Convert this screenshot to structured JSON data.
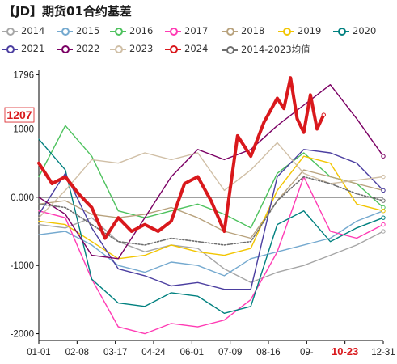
{
  "title": "【JD】期货01合约基差",
  "chart_data": {
    "type": "line",
    "title": "【JD】期货01合约基差",
    "xlabel": "",
    "ylabel": "",
    "ylim": [
      -2100,
      1800
    ],
    "y_ticks": [
      1796,
      1000,
      0.0,
      -1000,
      -2000
    ],
    "y_tick_labels": [
      "1796",
      "1000",
      "0.000",
      "-1000",
      "-2000"
    ],
    "x_ticks": [
      "01-01",
      "02-08",
      "03-17",
      "04-24",
      "06-01",
      "07-09",
      "08-16",
      "09-",
      "10-23",
      "12-31"
    ],
    "highlight_x": "10-23",
    "highlight_y": 1207,
    "highlight_y_label": "1207",
    "grid": false,
    "legend_position": "top",
    "series": [
      {
        "name": "2014",
        "color": "#a6a6a6",
        "width": 1.4,
        "dash": "",
        "x": [
          0,
          4,
          8,
          12,
          16,
          20,
          24,
          28,
          32,
          36,
          40,
          44,
          48,
          52
        ],
        "values": [
          -400,
          -450,
          -300,
          -650,
          -800,
          -700,
          -750,
          -1050,
          -1250,
          -1100,
          -1000,
          -850,
          -700,
          -500
        ]
      },
      {
        "name": "2015",
        "color": "#74a9cf",
        "width": 1.4,
        "dash": "",
        "x": [
          0,
          4,
          8,
          12,
          16,
          20,
          24,
          28,
          32,
          36,
          40,
          44,
          48,
          52
        ],
        "values": [
          -550,
          -500,
          -700,
          -1000,
          -1100,
          -950,
          -1000,
          -1150,
          -900,
          -800,
          -700,
          -600,
          -350,
          -200
        ]
      },
      {
        "name": "2016",
        "color": "#4ec25e",
        "width": 1.4,
        "dash": "",
        "x": [
          0,
          4,
          8,
          12,
          16,
          20,
          24,
          28,
          32,
          36,
          40,
          44,
          48,
          52
        ],
        "values": [
          300,
          1050,
          600,
          -200,
          -300,
          -200,
          -100,
          -250,
          -450,
          350,
          650,
          300,
          200,
          -150
        ]
      },
      {
        "name": "2017",
        "color": "#ff3bb4",
        "width": 1.4,
        "dash": "",
        "x": [
          0,
          4,
          8,
          12,
          16,
          20,
          24,
          28,
          32,
          36,
          40,
          44,
          48,
          52
        ],
        "values": [
          -200,
          -300,
          -1200,
          -1900,
          -2000,
          -1850,
          -1900,
          -1800,
          -1500,
          -800,
          300,
          -500,
          -600,
          -400
        ]
      },
      {
        "name": "2018",
        "color": "#b8a27d",
        "width": 1.4,
        "dash": "",
        "x": [
          0,
          4,
          8,
          12,
          16,
          20,
          24,
          28,
          32,
          36,
          40,
          44,
          48,
          52
        ],
        "values": [
          -100,
          -50,
          -250,
          -300,
          -250,
          -150,
          -300,
          -500,
          -600,
          -50,
          400,
          300,
          200,
          100
        ]
      },
      {
        "name": "2019",
        "color": "#f2c500",
        "width": 1.4,
        "dash": "",
        "x": [
          0,
          4,
          8,
          12,
          16,
          20,
          24,
          28,
          32,
          36,
          40,
          44,
          48,
          52
        ],
        "values": [
          -350,
          -400,
          -650,
          -900,
          -850,
          -700,
          -800,
          -850,
          -750,
          100,
          600,
          500,
          -100,
          -200
        ]
      },
      {
        "name": "2020",
        "color": "#00807f",
        "width": 1.4,
        "dash": "",
        "x": [
          0,
          4,
          8,
          12,
          16,
          20,
          24,
          28,
          32,
          36,
          40,
          44,
          48,
          52
        ],
        "values": [
          850,
          400,
          -1200,
          -1550,
          -1600,
          -1400,
          -1450,
          -1700,
          -1600,
          -400,
          -200,
          -650,
          -450,
          -300
        ]
      },
      {
        "name": "2021",
        "color": "#4b3ea0",
        "width": 1.4,
        "dash": "",
        "x": [
          0,
          4,
          8,
          12,
          16,
          20,
          24,
          28,
          32,
          36,
          40,
          44,
          48,
          52
        ],
        "values": [
          -250,
          350,
          -450,
          -1050,
          -1150,
          -1300,
          -1250,
          -1350,
          -1350,
          300,
          700,
          650,
          500,
          100
        ]
      },
      {
        "name": "2022",
        "color": "#7b0064",
        "width": 1.4,
        "dash": "",
        "x": [
          0,
          4,
          8,
          12,
          16,
          20,
          24,
          28,
          32,
          36,
          40,
          44,
          48,
          52
        ],
        "values": [
          0,
          -250,
          -850,
          -900,
          -300,
          300,
          700,
          550,
          700,
          1050,
          1350,
          1650,
          1150,
          600
        ]
      },
      {
        "name": "2023",
        "color": "#d0bfa6",
        "width": 1.4,
        "dash": "",
        "x": [
          0,
          4,
          8,
          12,
          16,
          20,
          24,
          28,
          32,
          36,
          40,
          44,
          48,
          52
        ],
        "values": [
          -300,
          100,
          550,
          500,
          650,
          550,
          650,
          100,
          400,
          800,
          350,
          200,
          250,
          300
        ]
      },
      {
        "name": "2024",
        "color": "#d9181c",
        "width": 4,
        "dash": "",
        "x": [
          0,
          2,
          4,
          6,
          8,
          10,
          12,
          14,
          16,
          18,
          20,
          22,
          24,
          26,
          28,
          30,
          32,
          34,
          36,
          37,
          38,
          39,
          40,
          41,
          42,
          43
        ],
        "values": [
          500,
          200,
          300,
          50,
          -150,
          -600,
          -300,
          -500,
          -400,
          -500,
          -350,
          200,
          300,
          -50,
          -500,
          900,
          600,
          1100,
          1450,
          1300,
          1750,
          1150,
          950,
          1500,
          1000,
          1207
        ]
      },
      {
        "name": "2014-2023均值",
        "color": "#6e6e6e",
        "width": 1.6,
        "dash": "2,2",
        "x": [
          0,
          4,
          8,
          12,
          16,
          20,
          24,
          28,
          32,
          36,
          40,
          44,
          48,
          52
        ],
        "values": [
          -100,
          -150,
          -400,
          -650,
          -700,
          -600,
          -650,
          -700,
          -650,
          -50,
          300,
          200,
          50,
          -50
        ]
      }
    ]
  }
}
